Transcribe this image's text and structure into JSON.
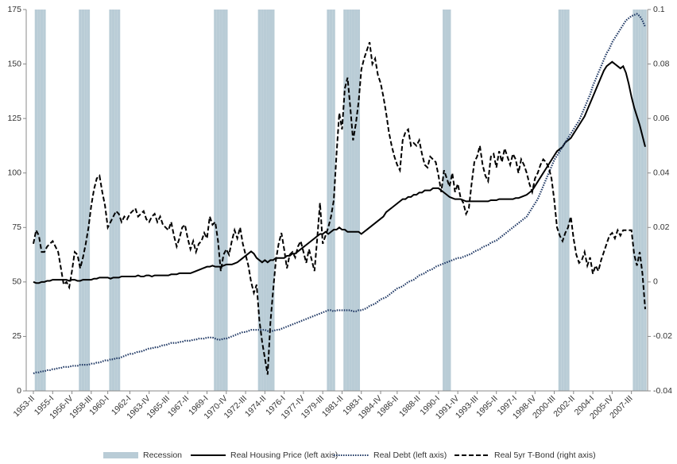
{
  "chart_data": {
    "type": "line",
    "categories": [
      "1953-II",
      null,
      null,
      null,
      null,
      null,
      null,
      "1955-I",
      null,
      null,
      null,
      null,
      null,
      null,
      "1956-IV",
      null,
      null,
      null,
      null,
      null,
      null,
      "1958-III",
      null,
      null,
      null,
      null,
      null,
      "1960-I",
      null,
      null,
      null,
      null,
      null,
      null,
      null,
      "1962-I",
      null,
      null,
      null,
      null,
      null,
      null,
      "1963-IV",
      null,
      null,
      null,
      null,
      null,
      null,
      "1965-III",
      null,
      null,
      null,
      null,
      null,
      null,
      "1967-II",
      null,
      null,
      null,
      null,
      null,
      null,
      "1969-I",
      null,
      null,
      null,
      null,
      null,
      null,
      "1970-IV",
      null,
      null,
      null,
      null,
      null,
      null,
      "1972-III",
      null,
      null,
      null,
      null,
      null,
      null,
      "1974-II",
      null,
      null,
      null,
      null,
      null,
      null,
      "1976-I",
      null,
      null,
      null,
      null,
      null,
      null,
      "1977-IV",
      null,
      null,
      null,
      null,
      null,
      null,
      "1979-III",
      null,
      null,
      null,
      null,
      null,
      null,
      "1981-II",
      null,
      null,
      null,
      null,
      null,
      null,
      "1983-I",
      null,
      null,
      null,
      null,
      null,
      null,
      "1984-IV",
      null,
      null,
      null,
      null,
      null,
      "1986-II",
      null,
      null,
      null,
      null,
      null,
      null,
      null,
      "1988-II",
      null,
      null,
      null,
      null,
      null,
      null,
      "1990-I",
      null,
      null,
      null,
      null,
      null,
      null,
      "1991-IV",
      null,
      null,
      null,
      null,
      null,
      null,
      "1993-III",
      null,
      null,
      null,
      null,
      null,
      null,
      "1995-II",
      null,
      null,
      null,
      null,
      null,
      null,
      "1997-I",
      null,
      null,
      null,
      null,
      null,
      null,
      "1998-IV",
      null,
      null,
      null,
      null,
      null,
      null,
      "2000-III",
      null,
      null,
      null,
      null,
      null,
      null,
      "2002-II",
      null,
      null,
      null,
      null,
      null,
      null,
      "2004-I",
      null,
      null,
      null,
      null,
      null,
      null,
      "2005-IV",
      null,
      null,
      null,
      null,
      null,
      null,
      "2007-III",
      null,
      null,
      null,
      null,
      null
    ],
    "series": [
      {
        "name": "Recession",
        "type": "band",
        "color": "#b9ccd6",
        "axis": "y",
        "values": [
          null,
          175,
          175,
          175,
          175,
          null,
          null,
          null,
          null,
          null,
          null,
          null,
          null,
          null,
          null,
          null,
          null,
          175,
          175,
          175,
          175,
          null,
          null,
          null,
          null,
          null,
          null,
          null,
          175,
          175,
          175,
          175,
          null,
          null,
          null,
          null,
          null,
          null,
          null,
          null,
          null,
          null,
          null,
          null,
          null,
          null,
          null,
          null,
          null,
          null,
          null,
          null,
          null,
          null,
          null,
          null,
          null,
          null,
          null,
          null,
          null,
          null,
          null,
          null,
          null,
          null,
          175,
          175,
          175,
          175,
          175,
          null,
          null,
          null,
          null,
          null,
          null,
          null,
          null,
          null,
          null,
          null,
          175,
          175,
          175,
          175,
          175,
          175,
          null,
          null,
          null,
          null,
          null,
          null,
          null,
          null,
          null,
          null,
          null,
          null,
          null,
          null,
          null,
          null,
          null,
          null,
          null,
          175,
          175,
          175,
          null,
          null,
          null,
          175,
          175,
          175,
          175,
          175,
          175,
          null,
          null,
          null,
          null,
          null,
          null,
          null,
          null,
          null,
          null,
          null,
          null,
          null,
          null,
          null,
          null,
          null,
          null,
          null,
          null,
          null,
          null,
          null,
          null,
          null,
          null,
          null,
          null,
          null,
          null,
          175,
          175,
          175,
          null,
          null,
          null,
          null,
          null,
          null,
          null,
          null,
          null,
          null,
          null,
          null,
          null,
          null,
          null,
          null,
          null,
          null,
          null,
          null,
          null,
          null,
          null,
          null,
          null,
          null,
          null,
          null,
          null,
          null,
          null,
          null,
          null,
          null,
          null,
          null,
          null,
          null,
          null,
          175,
          175,
          175,
          175,
          null,
          null,
          null,
          null,
          null,
          null,
          null,
          null,
          null,
          null,
          null,
          null,
          null,
          null,
          null,
          null,
          null,
          null,
          null,
          null,
          null,
          null,
          null,
          175,
          175,
          175,
          175,
          175
        ]
      },
      {
        "name": "Real Housing Price (left axis)",
        "type": "line",
        "line_style": "solid",
        "color": "#000000",
        "axis": "y",
        "values": [
          50,
          49.5,
          49.5,
          50,
          50,
          50.5,
          50.5,
          51,
          51,
          51,
          51,
          51,
          51,
          50.5,
          51,
          51,
          50.5,
          50.5,
          51,
          51,
          51,
          51,
          51.5,
          51.5,
          52,
          52,
          52,
          52,
          51.5,
          52,
          52,
          52,
          52.5,
          52.5,
          52.5,
          52.5,
          52.5,
          52.5,
          53,
          52.5,
          52.5,
          53,
          53,
          52.5,
          53,
          53,
          53,
          53,
          53,
          53,
          53.5,
          53.5,
          53.5,
          54,
          54,
          54,
          54,
          54,
          54.5,
          55,
          55.5,
          56,
          56.5,
          57,
          57,
          57.5,
          57,
          57,
          57,
          57.5,
          58,
          58,
          58,
          58.5,
          59,
          60,
          61,
          62,
          63,
          64,
          63,
          61,
          60,
          59,
          60,
          59,
          60,
          60,
          61,
          61,
          61,
          61,
          62,
          62,
          63,
          63,
          64,
          65,
          66,
          67,
          68,
          69,
          70,
          71,
          72,
          72,
          73,
          72,
          73,
          74,
          74,
          75,
          74,
          74,
          73,
          73,
          73,
          73,
          73,
          72,
          73,
          74,
          75,
          76,
          77,
          78,
          79,
          80,
          82,
          83,
          84,
          85,
          86,
          87,
          88,
          88,
          89,
          89,
          90,
          90,
          91,
          91,
          92,
          92,
          92,
          93,
          93,
          93,
          92,
          91,
          90,
          89,
          88.5,
          88,
          88,
          88,
          87.5,
          87,
          87,
          87,
          87,
          87,
          87,
          87,
          87,
          87,
          87.5,
          87.5,
          87.5,
          88,
          88,
          88,
          88,
          88,
          88,
          88.5,
          88.5,
          89,
          89.5,
          90,
          91,
          92,
          94,
          96,
          98,
          100,
          102,
          104,
          106,
          108,
          110,
          111,
          112,
          114,
          115,
          116,
          118,
          120,
          122,
          124,
          126,
          129,
          132,
          135,
          138,
          141,
          144,
          147,
          149,
          150,
          151,
          150,
          149,
          148,
          149,
          146,
          141,
          135,
          130,
          126,
          122,
          117,
          112
        ]
      },
      {
        "name": "Real Debt (left axis)",
        "type": "line",
        "line_style": "dotted",
        "color": "#1f3864",
        "axis": "y",
        "values": [
          8,
          8.5,
          8.5,
          9,
          9,
          9.5,
          9.5,
          10,
          10,
          10.5,
          10.5,
          11,
          11,
          11,
          11.5,
          11.5,
          11.5,
          12,
          12,
          12,
          12,
          12.5,
          12.5,
          13,
          13,
          13.5,
          14,
          14,
          14.5,
          14.5,
          15,
          15,
          15.5,
          16,
          16.5,
          17,
          17,
          17.5,
          18,
          18,
          18.5,
          19,
          19.5,
          19.5,
          20,
          20,
          20.5,
          21,
          21,
          21.5,
          22,
          22,
          22,
          22.5,
          22.5,
          23,
          23,
          23,
          23.5,
          23.5,
          24,
          24,
          24,
          24.5,
          24.5,
          24.5,
          24,
          23.5,
          23.5,
          24,
          24,
          24.5,
          25,
          25.5,
          26,
          26.5,
          27,
          27,
          27.5,
          28,
          28,
          28,
          28,
          28,
          28,
          27.5,
          27.5,
          27.5,
          28,
          28,
          28.5,
          29,
          29.5,
          30,
          30.5,
          31,
          31.5,
          32,
          32.5,
          33,
          33.5,
          34,
          34.5,
          35,
          35.5,
          36,
          36.5,
          37,
          37,
          36.5,
          37,
          37,
          37,
          37,
          37,
          37,
          36.5,
          36.5,
          37,
          37,
          37.5,
          38,
          39,
          39.5,
          40,
          41,
          42,
          42.5,
          43,
          44,
          45,
          46,
          47,
          47.5,
          48,
          49,
          50,
          50.5,
          51,
          52,
          53,
          53.5,
          54,
          55,
          55.5,
          56,
          57,
          57.5,
          58,
          58.5,
          59,
          59.5,
          60,
          60.5,
          61,
          61,
          61.5,
          62,
          62.5,
          63,
          64,
          64.5,
          65,
          66,
          66.5,
          67,
          68,
          68.5,
          69,
          70,
          71,
          72,
          73,
          74,
          75,
          76,
          77,
          78,
          79,
          80,
          82,
          84,
          86,
          88,
          91,
          94,
          97,
          100,
          103,
          106,
          108,
          110,
          112,
          114,
          116,
          118,
          120,
          122,
          124,
          127,
          130,
          133,
          136,
          140,
          143,
          146,
          149,
          152,
          155,
          157,
          160,
          162,
          164,
          166,
          168,
          170,
          171,
          172,
          172.5,
          173,
          172,
          170,
          167
        ]
      },
      {
        "name": "Real 5yr T-Bond (right axis)",
        "type": "line",
        "line_style": "dashed",
        "color": "#000000",
        "axis": "y2",
        "values": [
          0.014,
          0.019,
          0.017,
          0.011,
          0.011,
          0.013,
          0.014,
          0.015,
          0.013,
          0.011,
          0.005,
          -0.001,
          0.0,
          -0.002,
          0.004,
          0.011,
          0.01,
          0.005,
          0.009,
          0.014,
          0.02,
          0.028,
          0.034,
          0.038,
          0.039,
          0.033,
          0.028,
          0.02,
          0.022,
          0.024,
          0.026,
          0.025,
          0.022,
          0.024,
          0.023,
          0.025,
          0.026,
          0.027,
          0.024,
          0.025,
          0.026,
          0.023,
          0.022,
          0.024,
          0.025,
          0.022,
          0.024,
          0.021,
          0.02,
          0.019,
          0.022,
          0.017,
          0.013,
          0.016,
          0.02,
          0.021,
          0.016,
          0.012,
          0.015,
          0.011,
          0.014,
          0.015,
          0.018,
          0.016,
          0.024,
          0.021,
          0.022,
          0.015,
          0.004,
          0.01,
          0.012,
          0.01,
          0.015,
          0.019,
          0.016,
          0.02,
          0.014,
          0.01,
          0.006,
          0.0,
          -0.004,
          -0.001,
          -0.014,
          -0.022,
          -0.028,
          -0.034,
          -0.015,
          -0.003,
          0.008,
          0.014,
          0.018,
          0.012,
          0.005,
          0.01,
          0.011,
          0.009,
          0.013,
          0.015,
          0.011,
          0.007,
          0.012,
          0.008,
          0.004,
          0.016,
          0.029,
          0.014,
          0.017,
          0.02,
          0.024,
          0.03,
          0.047,
          0.062,
          0.056,
          0.071,
          0.075,
          0.064,
          0.052,
          0.058,
          0.066,
          0.078,
          0.082,
          0.085,
          0.088,
          0.08,
          0.082,
          0.076,
          0.073,
          0.068,
          0.062,
          0.055,
          0.05,
          0.046,
          0.043,
          0.041,
          0.052,
          0.055,
          0.056,
          0.05,
          0.051,
          0.05,
          0.052,
          0.047,
          0.043,
          0.042,
          0.046,
          0.045,
          0.044,
          0.039,
          0.033,
          0.041,
          0.038,
          0.035,
          0.04,
          0.033,
          0.036,
          0.031,
          0.029,
          0.025,
          0.027,
          0.036,
          0.044,
          0.046,
          0.05,
          0.043,
          0.039,
          0.037,
          0.046,
          0.047,
          0.042,
          0.048,
          0.044,
          0.049,
          0.046,
          0.043,
          0.047,
          0.045,
          0.04,
          0.045,
          0.043,
          0.04,
          0.036,
          0.033,
          0.038,
          0.04,
          0.043,
          0.045,
          0.044,
          0.042,
          0.038,
          0.03,
          0.02,
          0.017,
          0.015,
          0.018,
          0.02,
          0.024,
          0.016,
          0.01,
          0.007,
          0.008,
          0.011,
          0.006,
          0.009,
          0.003,
          0.006,
          0.004,
          0.008,
          0.011,
          0.014,
          0.017,
          0.018,
          0.016,
          0.019,
          0.017,
          0.019,
          0.019,
          0.019,
          0.019,
          0.01,
          0.006,
          0.011,
          0.003,
          -0.01
        ]
      }
    ],
    "ylim": [
      0,
      175
    ],
    "yticks": [
      0,
      25,
      50,
      75,
      100,
      125,
      150,
      175
    ],
    "y2lim": [
      -0.04,
      0.1
    ],
    "y2ticks": [
      -0.04,
      -0.02,
      0,
      0.02,
      0.04,
      0.06,
      0.08,
      0.1
    ],
    "grid": false,
    "legend": "bottom"
  }
}
